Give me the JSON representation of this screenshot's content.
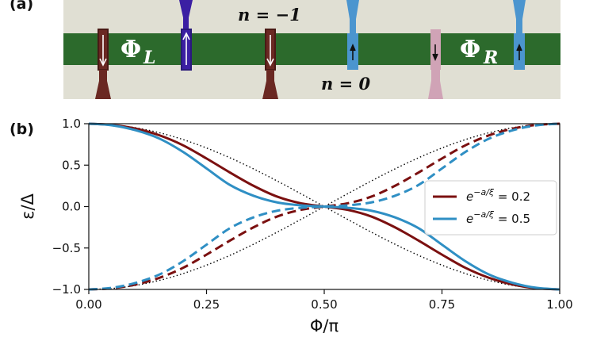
{
  "panel_a": {
    "label": "(a)",
    "colors": {
      "background": "#e0dfd3",
      "wire": "#2c6a2c",
      "lead_darkred": "#6a2822",
      "lead_navy": "#3b1fa3",
      "lead_blue": "#4b95cf",
      "lead_pink": "#d0a3b6"
    },
    "label_n_top": "n = −1",
    "label_n_bottom": "n = 0",
    "label_phi_left": "Φ",
    "label_phi_left_sub": "L",
    "label_phi_right": "Φ",
    "label_phi_right_sub": "R",
    "spin_arrows": [
      {
        "lead": "darkred-1",
        "direction": "down"
      },
      {
        "lead": "navy",
        "direction": "up"
      },
      {
        "lead": "darkred-2",
        "direction": "down"
      },
      {
        "lead": "blue-1",
        "direction": "up"
      },
      {
        "lead": "pink",
        "direction": "down"
      },
      {
        "lead": "blue-2",
        "direction": "up"
      }
    ]
  },
  "panel_b": {
    "label": "(b)"
  },
  "chart_data": {
    "type": "line",
    "xlabel": "Φ/π",
    "ylabel": "ε/Δ",
    "xlim": [
      0,
      1
    ],
    "ylim": [
      -1,
      1
    ],
    "xticks": [
      "0.00",
      "0.25",
      "0.50",
      "0.75",
      "1.00"
    ],
    "yticks": [
      "1.0",
      "0.5",
      "0.0",
      "−0.5",
      "−1.0"
    ],
    "grid": false,
    "legend_position": "right",
    "x": [
      0,
      0.05,
      0.1,
      0.15,
      0.2,
      0.25,
      0.3,
      0.35,
      0.4,
      0.45,
      0.5,
      0.55,
      0.6,
      0.65,
      0.7,
      0.75,
      0.8,
      0.85,
      0.9,
      0.95,
      1.0
    ],
    "series": [
      {
        "name": "e^{−a/ξ} = 0.2",
        "legend": true,
        "color": "#7b1010",
        "style": "solid",
        "values": [
          1.0,
          0.985,
          0.94,
          0.86,
          0.74,
          0.58,
          0.41,
          0.25,
          0.12,
          0.04,
          0.0,
          -0.04,
          -0.12,
          -0.25,
          -0.41,
          -0.58,
          -0.74,
          -0.86,
          -0.94,
          -0.985,
          -1.0
        ]
      },
      {
        "legend": false,
        "color": "#7b1010",
        "style": "dashed",
        "values": [
          -1.0,
          -0.985,
          -0.94,
          -0.86,
          -0.74,
          -0.58,
          -0.41,
          -0.25,
          -0.12,
          -0.04,
          0.0,
          0.04,
          0.12,
          0.25,
          0.41,
          0.58,
          0.74,
          0.86,
          0.94,
          0.985,
          1.0
        ]
      },
      {
        "name": "e^{−a/ξ} = 0.5",
        "legend": true,
        "color": "#2f8fc4",
        "style": "solid",
        "values": [
          1.0,
          0.98,
          0.92,
          0.82,
          0.66,
          0.46,
          0.26,
          0.13,
          0.05,
          0.015,
          0.0,
          -0.015,
          -0.05,
          -0.13,
          -0.26,
          -0.46,
          -0.66,
          -0.82,
          -0.92,
          -0.98,
          -1.0
        ]
      },
      {
        "legend": false,
        "color": "#2f8fc4",
        "style": "dashed",
        "values": [
          -1.0,
          -0.98,
          -0.92,
          -0.82,
          -0.66,
          -0.46,
          -0.26,
          -0.13,
          -0.05,
          -0.015,
          0.0,
          0.015,
          0.05,
          0.13,
          0.26,
          0.46,
          0.66,
          0.82,
          0.92,
          0.98,
          1.0
        ]
      },
      {
        "legend": false,
        "color": "#000000",
        "style": "dotted",
        "values": [
          1.0,
          0.988,
          0.951,
          0.891,
          0.809,
          0.707,
          0.588,
          0.454,
          0.309,
          0.156,
          0.0,
          -0.156,
          -0.309,
          -0.454,
          -0.588,
          -0.707,
          -0.809,
          -0.891,
          -0.951,
          -0.988,
          -1.0
        ]
      },
      {
        "legend": false,
        "color": "#000000",
        "style": "dotted",
        "values": [
          -1.0,
          -0.988,
          -0.951,
          -0.891,
          -0.809,
          -0.707,
          -0.588,
          -0.454,
          -0.309,
          -0.156,
          0.0,
          0.156,
          0.309,
          0.454,
          0.588,
          0.707,
          0.809,
          0.891,
          0.951,
          0.988,
          1.0
        ]
      }
    ]
  }
}
